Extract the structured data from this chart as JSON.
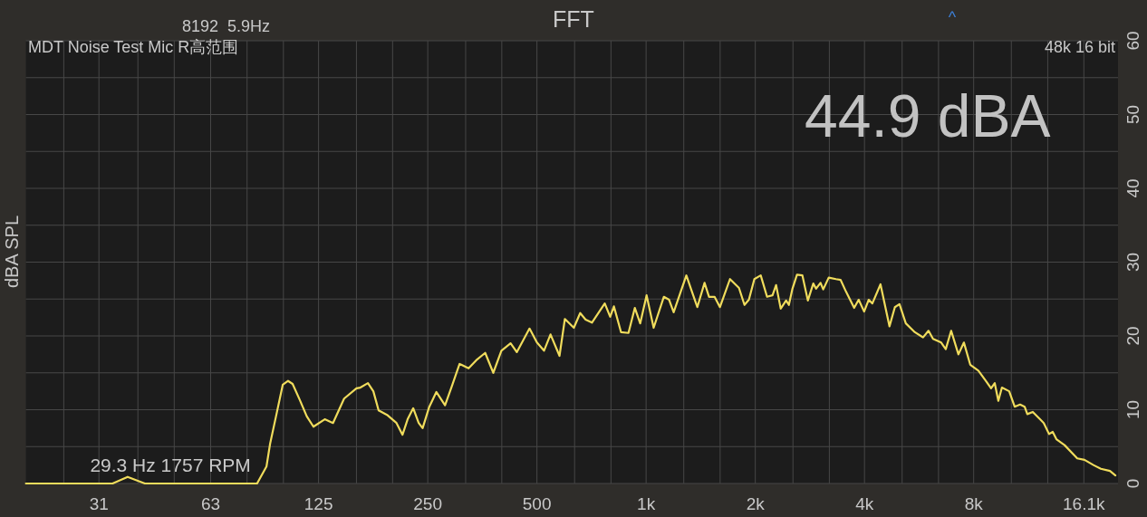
{
  "chart_data": {
    "type": "line",
    "title": "FFT",
    "ylabel": "dBA SPL",
    "annotations": [
      "8192  5.9Hz",
      "^",
      "MDT Noise Test Mic R高范围",
      "48k 16 bit",
      "44.9 dBA",
      {
        "text": "29.3 Hz 1757 RPM",
        "x": 29.3,
        "y": 0
      }
    ],
    "x": [
      19.5,
      33.8,
      37.2,
      41.5,
      84.6,
      89.8,
      91.9,
      95.7,
      99.6,
      103,
      106,
      111,
      116,
      121,
      130,
      137,
      147,
      159,
      163,
      171,
      177,
      183,
      193,
      205,
      213,
      220,
      228,
      236,
      242,
      252,
      264,
      279,
      291,
      306,
      324,
      340,
      360,
      379,
      399,
      423,
      440,
      477,
      500,
      523,
      545,
      577,
      597,
      632,
      658,
      681,
      709,
      769,
      796,
      815,
      853,
      894,
      931,
      963,
      1003,
      1049,
      1119,
      1157,
      1191,
      1291,
      1384,
      1449,
      1491,
      1544,
      1598,
      1703,
      1803,
      1867,
      1920,
      1988,
      2070,
      2155,
      2231,
      2282,
      2350,
      2432,
      2475,
      2532,
      2606,
      2697,
      2792,
      2890,
      2941,
      3026,
      3078,
      3187,
      3338,
      3436,
      3557,
      3746,
      3855,
      3991,
      4108,
      4205,
      4428,
      4688,
      4851,
      4995,
      5200,
      5508,
      5802,
      6006,
      6181,
      6508,
      6701,
      6935,
      7262,
      7520,
      7828,
      8243,
      8677,
      8935,
      9145,
      9356,
      9572,
      10023,
      10378,
      10744,
      11055,
      11245,
      11644,
      12191,
      12482,
      12912,
      13215,
      13525,
      14248,
      15441,
      16162,
      17113,
      17938,
      19004,
      19676
    ],
    "series": [
      {
        "color": "#f0dc5c",
        "values": [
          0,
          0,
          0.9,
          0,
          0,
          2.3,
          5.4,
          9.4,
          13.4,
          13.9,
          13.5,
          11.3,
          9.1,
          7.7,
          8.7,
          8.2,
          11.5,
          12.9,
          13.0,
          13.6,
          12.5,
          9.9,
          9.3,
          8.2,
          6.6,
          8.7,
          10.2,
          8.2,
          7.5,
          10.3,
          12.4,
          10.6,
          13.1,
          16.2,
          15.6,
          16.7,
          17.7,
          15.0,
          18.0,
          19.0,
          17.8,
          21.0,
          19.1,
          18.0,
          20.2,
          17.3,
          22.3,
          21.1,
          23.1,
          22.2,
          21.8,
          24.4,
          22.6,
          24.0,
          20.5,
          20.4,
          23.8,
          21.7,
          25.5,
          21.1,
          25.3,
          24.9,
          23.2,
          28.2,
          23.9,
          27.2,
          25.3,
          25.3,
          23.9,
          27.7,
          26.5,
          24.2,
          24.9,
          27.7,
          28.2,
          25.3,
          25.5,
          26.9,
          23.7,
          24.8,
          24.2,
          26.4,
          28.3,
          28.2,
          24.8,
          27.1,
          26.4,
          27.2,
          26.3,
          27.9,
          27.7,
          27.6,
          26.0,
          23.8,
          24.9,
          23.3,
          24.9,
          24.4,
          27.0,
          21.3,
          23.9,
          24.3,
          21.7,
          20.5,
          19.8,
          20.7,
          19.6,
          19.1,
          18.2,
          20.7,
          17.5,
          19.1,
          16.1,
          15.3,
          13.8,
          12.9,
          13.6,
          11.2,
          13.0,
          12.5,
          10.4,
          10.7,
          10.4,
          9.4,
          9.7,
          8.7,
          8.2,
          6.7,
          7.0,
          6.0,
          5.2,
          3.4,
          3.2,
          2.5,
          2.0,
          1.7,
          1.1
        ]
      }
    ],
    "log": "x",
    "xlim": [
      19.5,
      20000
    ],
    "xticks": [
      {
        "value": 24.8,
        "label": null
      },
      31,
      {
        "value": 39.7,
        "label": null
      },
      {
        "value": 50,
        "label": null
      },
      63,
      {
        "value": 79.4,
        "label": null
      },
      {
        "value": 100,
        "label": null
      },
      125,
      {
        "value": 159,
        "label": null
      },
      {
        "value": 200,
        "label": null
      },
      250,
      {
        "value": 318,
        "label": null
      },
      {
        "value": 400,
        "label": null
      },
      500,
      {
        "value": 635,
        "label": null
      },
      {
        "value": 800,
        "label": null
      },
      {
        "value": 1000,
        "label": "1k"
      },
      {
        "value": 1270,
        "label": null
      },
      {
        "value": 1600,
        "label": null
      },
      {
        "value": 2000,
        "label": "2k"
      },
      {
        "value": 2540,
        "label": null
      },
      {
        "value": 3200,
        "label": null
      },
      {
        "value": 4000,
        "label": "4k"
      },
      {
        "value": 5080,
        "label": null
      },
      {
        "value": 6400,
        "label": null
      },
      {
        "value": 8000,
        "label": "8k"
      },
      {
        "value": 10160,
        "label": null
      },
      {
        "value": 12800,
        "label": null
      },
      {
        "value": 16100,
        "label": "16.1k"
      }
    ],
    "ylim": [
      0,
      60
    ],
    "yticks": [
      0,
      {
        "value": 5,
        "label": null
      },
      10,
      {
        "value": 15,
        "label": null
      },
      20,
      {
        "value": 25,
        "label": null
      },
      30,
      {
        "value": 35,
        "label": null
      },
      40,
      {
        "value": 45,
        "label": null
      },
      50,
      {
        "value": 55,
        "label": null
      },
      60
    ],
    "grid": true
  }
}
